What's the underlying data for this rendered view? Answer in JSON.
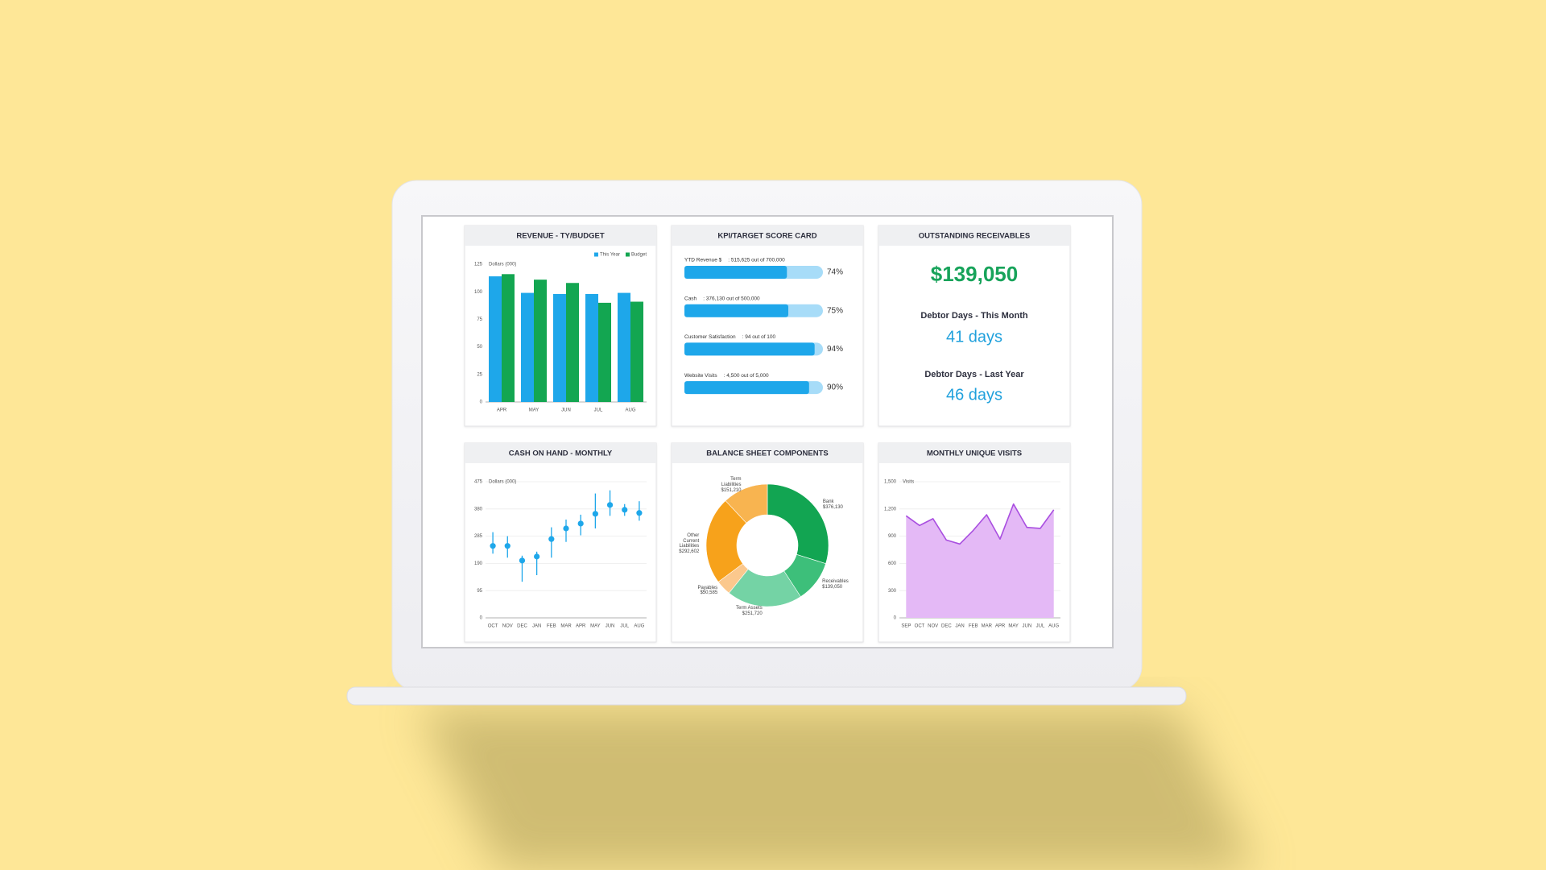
{
  "chart_data": [
    {
      "type": "bar",
      "title": "REVENUE - TY/BUDGET",
      "y_label": "Dollars (000)",
      "categories": [
        "APR",
        "MAY",
        "JUN",
        "JUL",
        "AUG"
      ],
      "series": [
        {
          "name": "This Year",
          "color": "#1ea7ea",
          "values": [
            114,
            99,
            98,
            98,
            99
          ]
        },
        {
          "name": "Budget",
          "color": "#13a651",
          "values": [
            116,
            111,
            108,
            90,
            91
          ]
        }
      ],
      "ylim": [
        0,
        125
      ],
      "yticks": [
        0,
        25,
        50,
        75,
        100,
        125
      ],
      "grid": false,
      "legend": "top-right"
    },
    {
      "type": "progress",
      "title": "KPI/TARGET SCORE CARD",
      "categories": [
        "YTD Revenue $",
        "Cash",
        "Customer Satisfaction",
        "Website Visits"
      ],
      "details": [
        ": 515,625 out of 700,000",
        ": 376,130 out of 500,000",
        ": 94 out of 100",
        ": 4,500 out of 5,000"
      ],
      "values": [
        74,
        75,
        94,
        90
      ],
      "value_labels": [
        "74%",
        "75%",
        "94%",
        "90%"
      ],
      "xlim": [
        0,
        100
      ],
      "color": "#1ea7ea",
      "track_color": "#a7dcf8"
    },
    {
      "type": "range",
      "title": "CASH ON HAND - MONTHLY",
      "y_label": "Dollars (000)",
      "categories": [
        "OCT",
        "NOV",
        "DEC",
        "JAN",
        "FEB",
        "MAR",
        "APR",
        "MAY",
        "JUN",
        "JUL",
        "AUG"
      ],
      "values": [
        251,
        251,
        200,
        214,
        275,
        312,
        329,
        363,
        394,
        377,
        366
      ],
      "high": [
        299,
        285,
        217,
        231,
        316,
        343,
        360,
        434,
        445,
        397,
        407
      ],
      "low": [
        224,
        210,
        126,
        149,
        210,
        265,
        288,
        312,
        356,
        356,
        339
      ],
      "color": "#1ea7ea",
      "ylim": [
        0,
        475
      ],
      "yticks": [
        0,
        95,
        190,
        285,
        380,
        475
      ],
      "grid": true
    },
    {
      "type": "pie",
      "title": "BALANCE SHEET COMPONENTS",
      "donut": true,
      "categories": [
        "Bank",
        "Receivables",
        "Term Assets",
        "Payables",
        "Other Current Liabilities",
        "Term Liabilities"
      ],
      "values": [
        376130,
        139050,
        251720,
        50585,
        292602,
        151210
      ],
      "value_labels": [
        "$376,130",
        "$139,050",
        "$251,720",
        "$50,585",
        "$292,602",
        "$151,210"
      ],
      "colors": [
        "#12a552",
        "#3dbf7a",
        "#74d3a5",
        "#fbc88d",
        "#f7a21b",
        "#f8b450"
      ]
    },
    {
      "type": "area",
      "title": "MONTHLY UNIQUE VISITS",
      "y_label": "Visits",
      "categories": [
        "SEP",
        "OCT",
        "NOV",
        "DEC",
        "JAN",
        "FEB",
        "MAR",
        "APR",
        "MAY",
        "JUN",
        "JUL",
        "AUG"
      ],
      "values": [
        1125,
        1018,
        1093,
        857,
        814,
        964,
        1136,
        868,
        1254,
        997,
        986,
        1190
      ],
      "color": "#a94fe0",
      "fill": "#e4b9f6",
      "ylim": [
        0,
        1500
      ],
      "yticks": [
        0,
        300,
        600,
        900,
        {
          "value": 1200,
          "label": "1,200"
        },
        {
          "value": 1500,
          "label": "1,500"
        }
      ],
      "grid": true
    }
  ],
  "receivables": {
    "title": "OUTSTANDING RECEIVABLES",
    "amount": "$139,050",
    "items": [
      {
        "label": "Debtor Days - This Month",
        "value": "41 days"
      },
      {
        "label": "Debtor Days - Last Year",
        "value": "46 days"
      }
    ]
  }
}
